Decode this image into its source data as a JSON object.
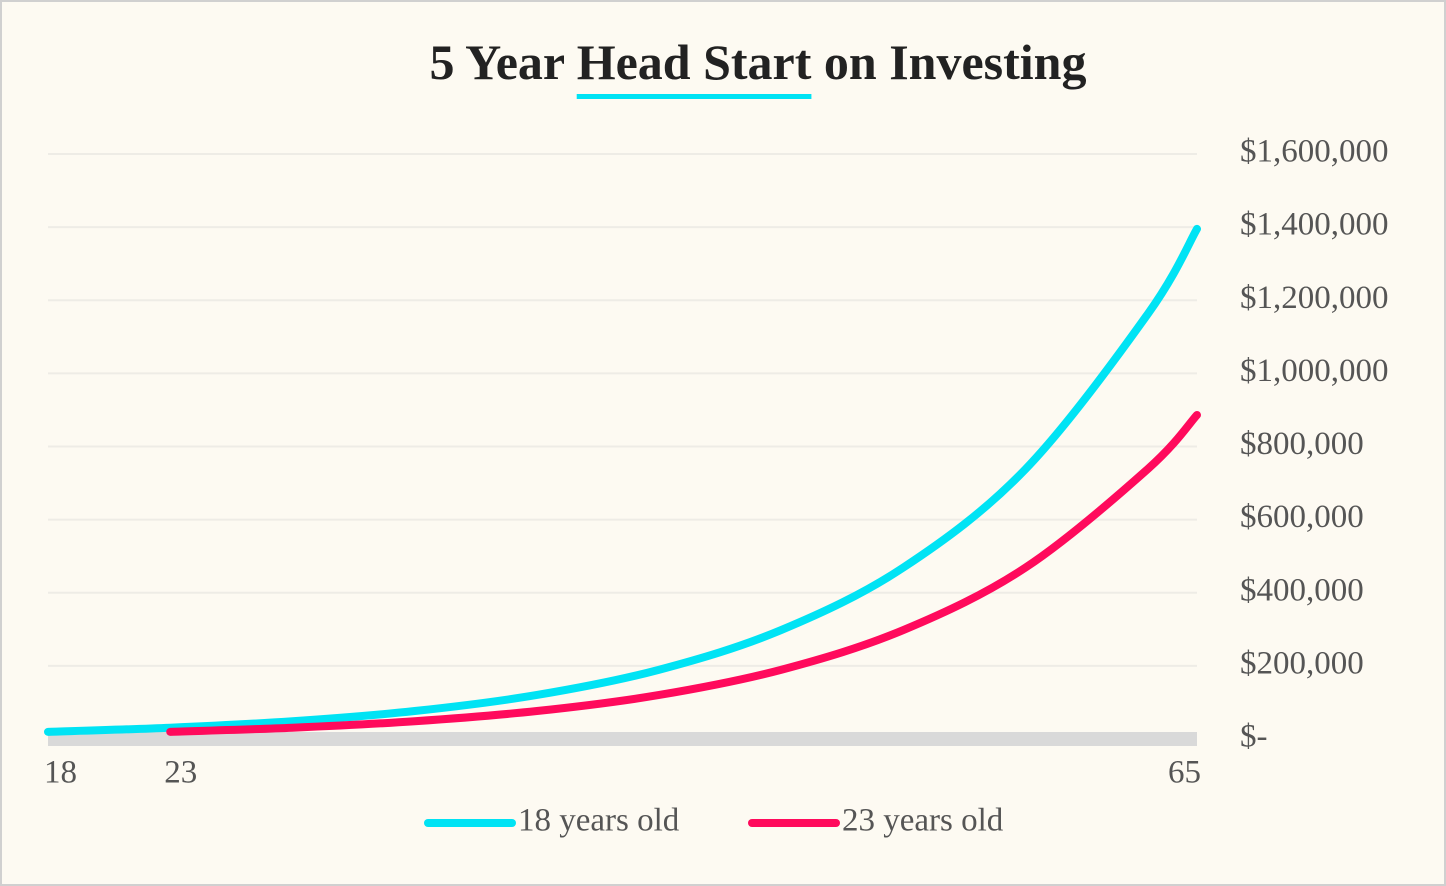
{
  "chart_data": {
    "type": "line",
    "title": [
      "5 Year",
      "Head Start",
      "on Investing"
    ],
    "x": [
      18,
      23,
      28,
      33,
      38,
      43,
      48,
      53,
      58,
      63,
      65
    ],
    "series": [
      {
        "name": "18 years old",
        "color": "#00e3f4",
        "values": [
          19600,
          30900,
          48600,
          76500,
          120400,
          189500,
          298300,
          469500,
          739200,
          1163600,
          1395100
        ]
      },
      {
        "name": "23 years old",
        "color": "#ff0a5c",
        "values": [
          null,
          19600,
          30900,
          48600,
          76500,
          120400,
          189500,
          298300,
          469500,
          739200,
          886300
        ]
      }
    ],
    "xlim": [
      18,
      65
    ],
    "xticks": [
      18,
      23,
      65
    ],
    "ylim": [
      0,
      1600000
    ],
    "yticks": [
      {
        "value": 0,
        "label": "$-"
      },
      {
        "value": 200000,
        "label": "$200,000"
      },
      {
        "value": 400000,
        "label": "$400,000"
      },
      {
        "value": 600000,
        "label": "$600,000"
      },
      {
        "value": 800000,
        "label": "$800,000"
      },
      {
        "value": 1000000,
        "label": "$1,000,000"
      },
      {
        "value": 1200000,
        "label": "$1,200,000"
      },
      {
        "value": 1400000,
        "label": "$1,400,000"
      },
      {
        "value": 1600000,
        "label": "$1,600,000"
      }
    ],
    "grid": true,
    "legend": "bottom"
  }
}
